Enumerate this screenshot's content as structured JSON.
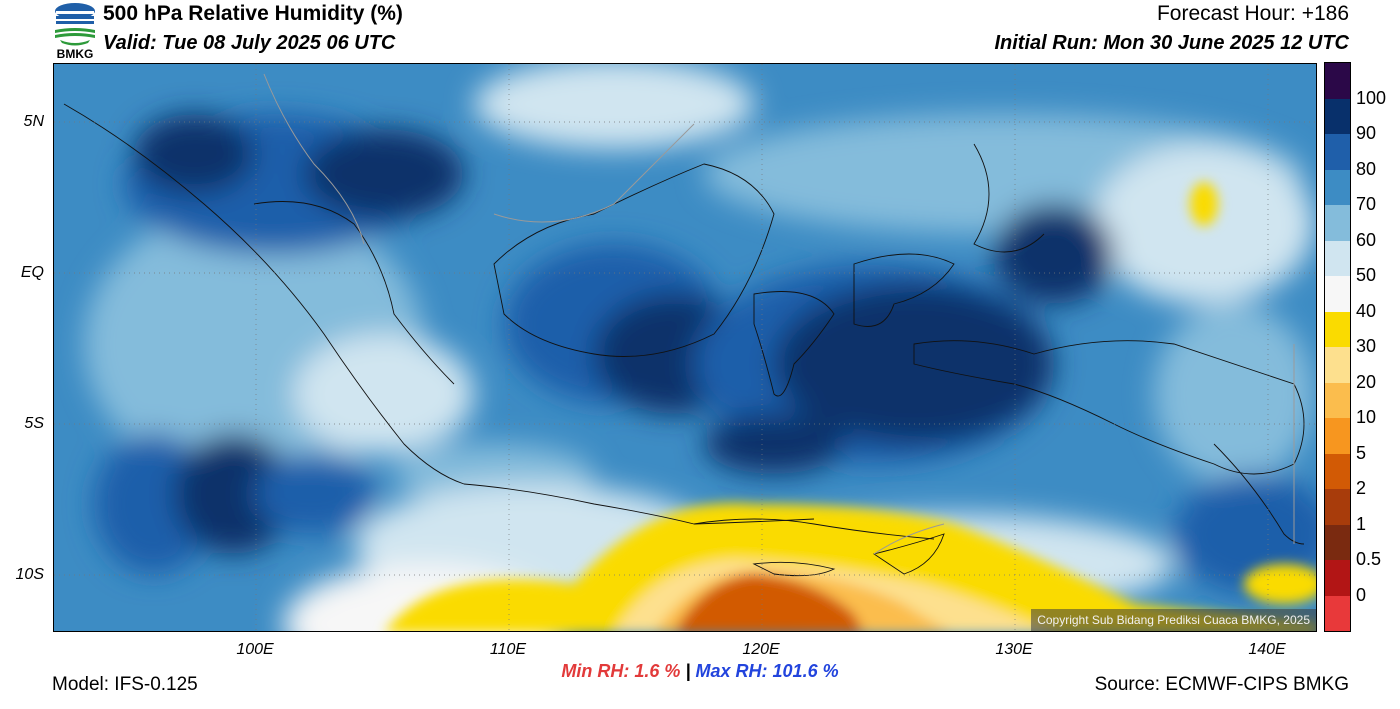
{
  "header": {
    "logo_text": "BMKG",
    "title": "500 hPa Relative Humidity (%)",
    "valid": "Valid: Tue 08 July 2025 06 UTC",
    "forecast_hour": "Forecast Hour: +186",
    "initial_run": "Initial Run: Mon 30 June 2025 12 UTC"
  },
  "map": {
    "lat_labels": [
      "5N",
      "EQ",
      "5S",
      "10S"
    ],
    "lon_labels": [
      "100E",
      "110E",
      "120E",
      "130E",
      "140E"
    ],
    "copyright": "Copyright Sub Bidang Prediksi Cuaca BMKG, 2025"
  },
  "colorbar": {
    "labels": [
      "100",
      "90",
      "80",
      "70",
      "60",
      "50",
      "40",
      "30",
      "20",
      "10",
      "5",
      "2",
      "1",
      "0.5",
      "0"
    ],
    "colors": [
      "#2b0848",
      "#08306b",
      "#1f5faa",
      "#3d8cc4",
      "#84bcdb",
      "#d0e5f0",
      "#f7f7f7",
      "#fadb00",
      "#fde08e",
      "#fbbd4d",
      "#f7961f",
      "#d25a05",
      "#a83c0b",
      "#7a2a10",
      "#b21515",
      "#e8393a"
    ]
  },
  "stats": {
    "min_label": "Min RH:",
    "min_value": "1.6 %",
    "separator": "|",
    "max_label": "Max RH:",
    "max_value": "101.6 %"
  },
  "footer": {
    "model": "Model: IFS-0.125",
    "source": "Source: ECMWF-CIPS BMKG"
  }
}
